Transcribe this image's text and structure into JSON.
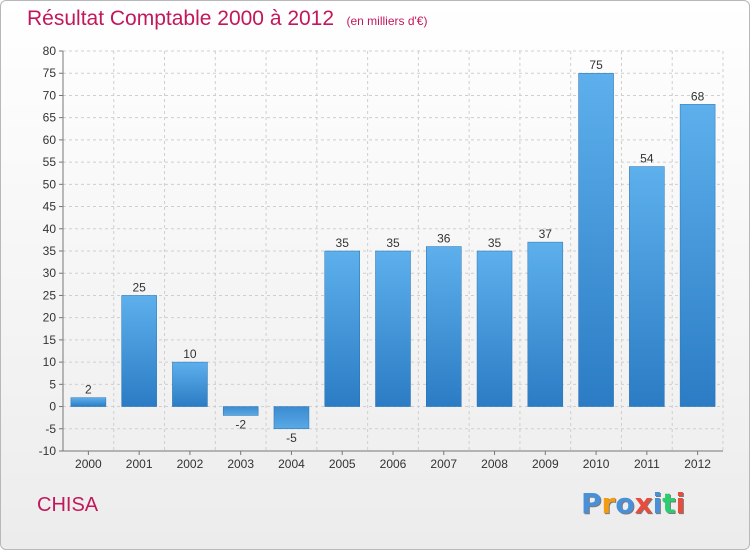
{
  "header": {
    "title": "Résultat Comptable 2000 à 2012",
    "subtitle": "(en milliers d'€)"
  },
  "footer": {
    "commune": "CHISA",
    "brand": "Proxiti",
    "brand_letters": [
      {
        "char": "P",
        "color": "#4a90d9"
      },
      {
        "char": "r",
        "color": "#f39c12"
      },
      {
        "char": "o",
        "color": "#4a90d9"
      },
      {
        "char": "x",
        "color": "#e74c3c"
      },
      {
        "char": "i",
        "color": "#4a90d9"
      },
      {
        "char": "t",
        "color": "#2ecc71"
      },
      {
        "char": "i",
        "color": "#e74c3c"
      }
    ]
  },
  "chart_data": {
    "type": "bar",
    "title": "Résultat Comptable 2000 à 2012",
    "subtitle": "(en milliers d'€)",
    "xlabel": "",
    "ylabel": "",
    "categories": [
      "2000",
      "2001",
      "2002",
      "2003",
      "2004",
      "2005",
      "2006",
      "2007",
      "2008",
      "2009",
      "2010",
      "2011",
      "2012"
    ],
    "values": [
      2,
      25,
      10,
      -2,
      -5,
      35,
      35,
      36,
      35,
      37,
      75,
      54,
      68
    ],
    "ylim": [
      -10,
      80
    ],
    "yticks": [
      -10,
      -5,
      0,
      5,
      10,
      15,
      20,
      25,
      30,
      35,
      40,
      45,
      50,
      55,
      60,
      65,
      70,
      75,
      80
    ],
    "grid": true,
    "bar_color": "#4a9de0",
    "bar_color_dark": "#2f80c8"
  }
}
